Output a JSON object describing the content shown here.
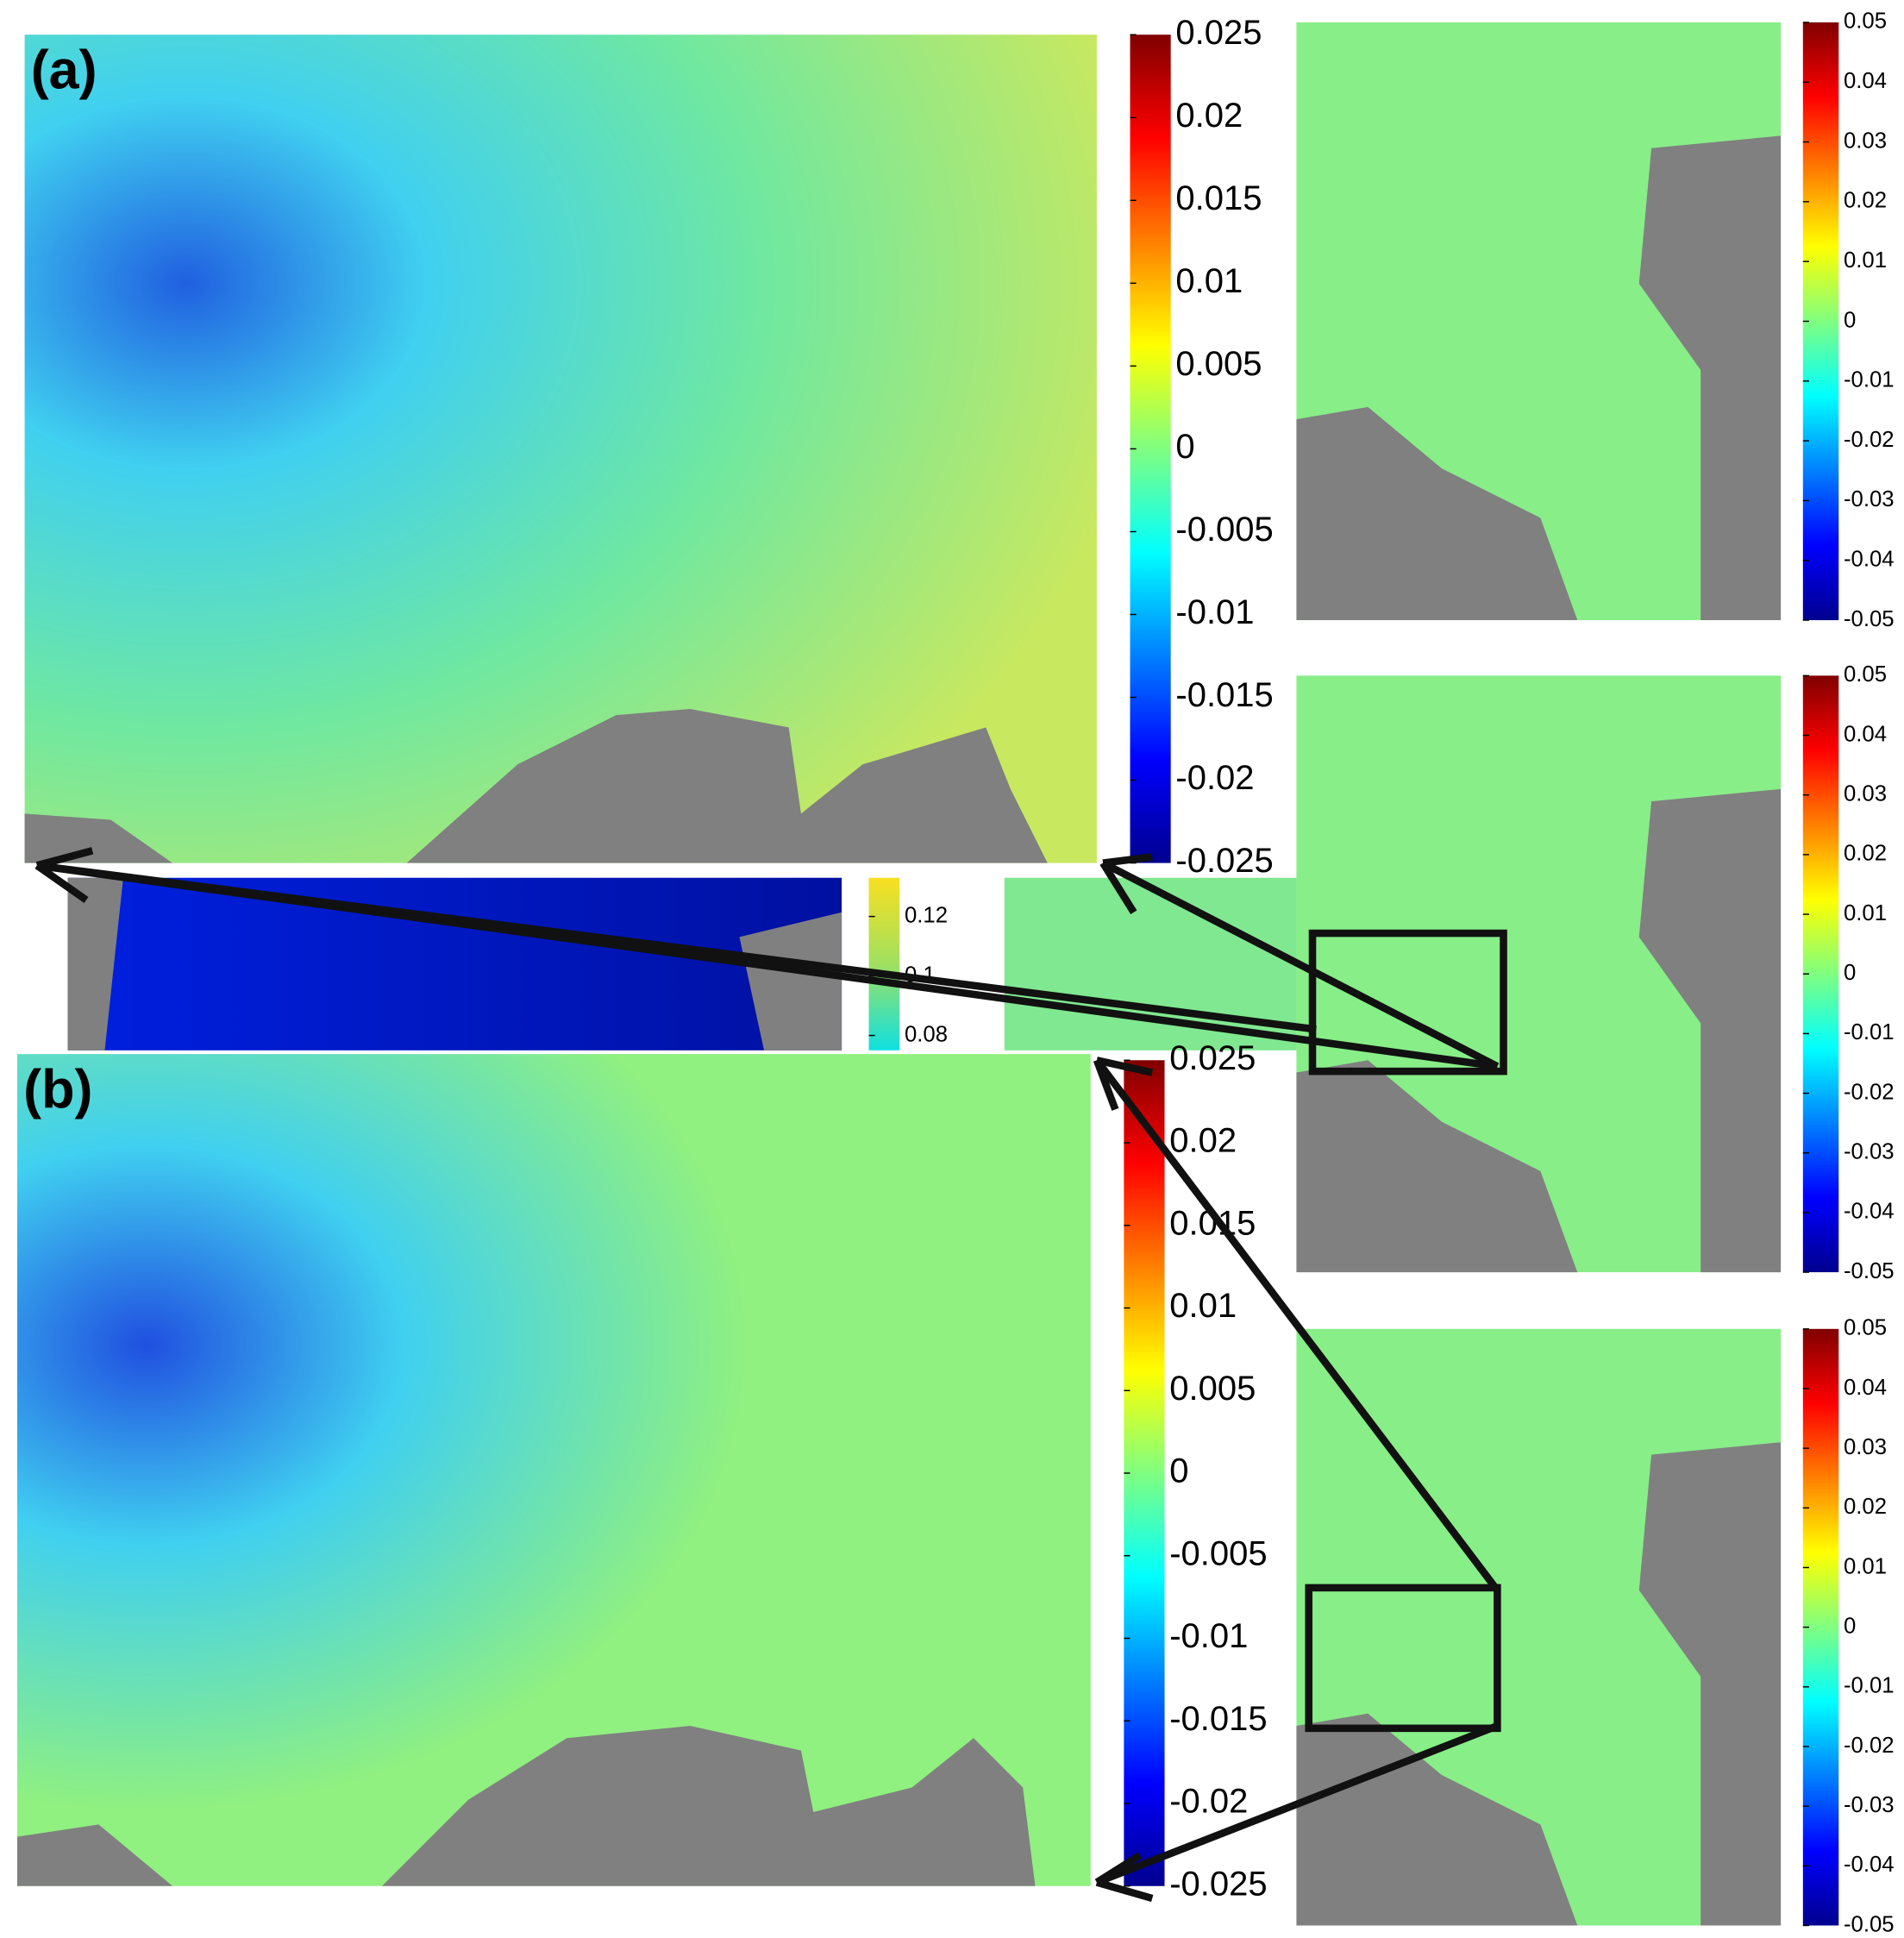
{
  "chart_data": [
    {
      "type": "heatmap",
      "title": "(a)",
      "colorbar": {
        "lim": [
          -0.025,
          0.025
        ],
        "ticks": [
          0.025,
          0.02,
          0.015,
          0.01,
          0.005,
          0,
          -0.005,
          -0.01,
          -0.015,
          -0.02,
          -0.025
        ]
      }
    },
    {
      "type": "heatmap",
      "title": "(b)",
      "colorbar": {
        "lim": [
          -0.025,
          0.025
        ],
        "ticks": [
          0.025,
          0.02,
          0.015,
          0.01,
          0.005,
          0,
          -0.005,
          -0.01,
          -0.015,
          -0.02,
          -0.025
        ]
      }
    },
    {
      "type": "heatmap",
      "colorbar": {
        "lim": [
          -0.05,
          0.05
        ],
        "ticks": [
          0.05,
          0.04,
          0.03,
          0.02,
          0.01,
          0,
          -0.01,
          -0.02,
          -0.03,
          -0.04,
          -0.05
        ]
      }
    },
    {
      "type": "heatmap",
      "colorbar": {
        "lim": [
          -0.05,
          0.05
        ],
        "ticks": [
          0.05,
          0.04,
          0.03,
          0.02,
          0.01,
          0,
          -0.01,
          -0.02,
          -0.03,
          -0.04,
          -0.05
        ]
      }
    },
    {
      "type": "heatmap",
      "colorbar": {
        "lim": [
          -0.05,
          0.05
        ],
        "ticks": [
          0.05,
          0.04,
          0.03,
          0.02,
          0.01,
          0,
          -0.01,
          -0.02,
          -0.03,
          -0.04,
          -0.05
        ]
      }
    },
    {
      "type": "heatmap",
      "colorbar": {
        "lim": [
          0.075,
          0.133
        ],
        "ticks": [
          0.12,
          0.1,
          0.08
        ]
      }
    }
  ]
}
